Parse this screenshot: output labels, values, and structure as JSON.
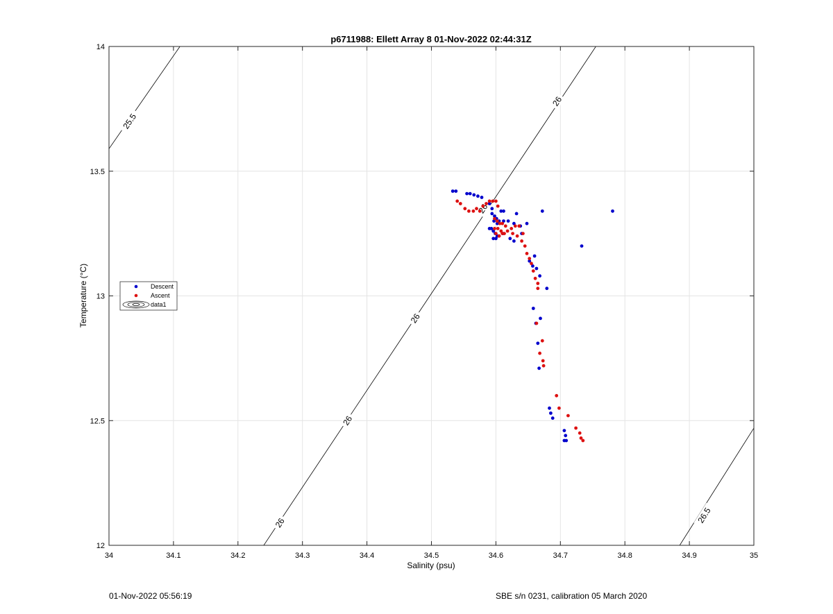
{
  "footer": {
    "left": "01-Nov-2022 05:56:19",
    "right": "SBE s/n 0231, calibration 05 March 2020"
  },
  "colors": {
    "descent": "#0000cc",
    "ascent": "#dd1111",
    "contour": "#000000",
    "grid": "#e4e4e4"
  },
  "chart_data": {
    "type": "scatter",
    "title": "p6711988: Ellett Array 8 01-Nov-2022 02:44:31Z",
    "xlabel": "Salinity (psu)",
    "ylabel": "Temperature (°C)",
    "xlim": [
      34,
      35
    ],
    "ylim": [
      12,
      14
    ],
    "xticks": [
      34,
      34.1,
      34.2,
      34.3,
      34.4,
      34.5,
      34.6,
      34.7,
      34.8,
      34.9,
      35
    ],
    "xticklabels": [
      "34",
      "34.1",
      "34.2",
      "34.3",
      "34.4",
      "34.5",
      "34.6",
      "34.7",
      "34.8",
      "34.9",
      "35"
    ],
    "yticks": [
      12,
      12.5,
      13,
      13.5,
      14
    ],
    "yticklabels": [
      "12",
      "12.5",
      "13",
      "13.5",
      "14"
    ],
    "grid": true,
    "legend_position": "left",
    "legend": [
      "Descent",
      "Ascent",
      "data1"
    ],
    "contours": [
      {
        "label": "25.5",
        "x": [
          34.0,
          34.11
        ],
        "y": [
          13.59,
          14.0
        ],
        "label_at": [
          {
            "x": 34.032,
            "y": 13.7
          }
        ]
      },
      {
        "label": "26",
        "x": [
          34.24,
          34.755
        ],
        "y": [
          12.0,
          14.0
        ],
        "label_at": [
          {
            "x": 34.265,
            "y": 12.09
          },
          {
            "x": 34.37,
            "y": 12.5
          },
          {
            "x": 34.475,
            "y": 12.91
          },
          {
            "x": 34.58,
            "y": 13.35
          },
          {
            "x": 34.695,
            "y": 13.78
          }
        ]
      },
      {
        "label": "26.5",
        "x": [
          34.885,
          35.0
        ],
        "y": [
          12.0,
          12.47
        ],
        "label_at": [
          {
            "x": 34.923,
            "y": 12.12
          }
        ]
      }
    ],
    "series": [
      {
        "name": "Descent",
        "x": [
          34.533,
          34.538,
          34.555,
          34.56,
          34.566,
          34.572,
          34.578,
          34.59,
          34.594,
          34.594,
          34.598,
          34.601,
          34.605,
          34.602,
          34.597,
          34.59,
          34.593,
          34.596,
          34.599,
          34.602,
          34.608,
          34.612,
          34.596,
          34.6,
          34.605,
          34.611,
          34.622,
          34.628,
          34.632,
          34.612,
          34.619,
          34.628,
          34.638,
          34.648,
          34.672,
          34.781,
          34.733,
          34.64,
          34.652,
          34.657,
          34.66,
          34.663,
          34.668,
          34.679,
          34.658,
          34.662,
          34.669,
          34.665,
          34.667,
          34.683,
          34.685,
          34.688,
          34.706,
          34.708,
          34.706,
          34.709
        ],
        "y": [
          13.42,
          13.42,
          13.41,
          13.41,
          13.405,
          13.4,
          13.395,
          13.37,
          13.35,
          13.33,
          13.32,
          13.31,
          13.3,
          13.29,
          13.3,
          13.27,
          13.27,
          13.26,
          13.25,
          13.24,
          13.34,
          13.34,
          13.23,
          13.23,
          13.24,
          13.25,
          13.23,
          13.22,
          13.33,
          13.3,
          13.3,
          13.29,
          13.28,
          13.29,
          13.34,
          13.34,
          13.2,
          13.25,
          13.14,
          13.12,
          13.16,
          13.11,
          13.08,
          13.03,
          12.95,
          12.89,
          12.91,
          12.81,
          12.71,
          12.55,
          12.53,
          12.51,
          12.46,
          12.44,
          12.42,
          12.42
        ]
      },
      {
        "name": "Ascent",
        "x": [
          34.54,
          34.545,
          34.552,
          34.558,
          34.565,
          34.57,
          34.575,
          34.58,
          34.585,
          34.59,
          34.595,
          34.6,
          34.603,
          34.598,
          34.602,
          34.606,
          34.61,
          34.615,
          34.598,
          34.603,
          34.608,
          34.613,
          34.6,
          34.605,
          34.61,
          34.618,
          34.624,
          34.63,
          34.636,
          34.642,
          34.626,
          34.633,
          34.64,
          34.645,
          34.648,
          34.652,
          34.655,
          34.658,
          34.661,
          34.665,
          34.665,
          34.663,
          34.672,
          34.668,
          34.673,
          34.674,
          34.694,
          34.698,
          34.712,
          34.724,
          34.73,
          34.732,
          34.735
        ],
        "y": [
          13.38,
          13.37,
          13.35,
          13.34,
          13.34,
          13.35,
          13.34,
          13.36,
          13.37,
          13.38,
          13.38,
          13.38,
          13.36,
          13.31,
          13.3,
          13.29,
          13.29,
          13.28,
          13.27,
          13.27,
          13.26,
          13.25,
          13.25,
          13.24,
          13.25,
          13.26,
          13.27,
          13.28,
          13.28,
          13.25,
          13.25,
          13.24,
          13.22,
          13.2,
          13.17,
          13.15,
          13.13,
          13.1,
          13.07,
          13.05,
          13.03,
          12.89,
          12.82,
          12.77,
          12.74,
          12.72,
          12.6,
          12.55,
          12.52,
          12.47,
          12.45,
          12.43,
          12.42
        ]
      }
    ]
  }
}
